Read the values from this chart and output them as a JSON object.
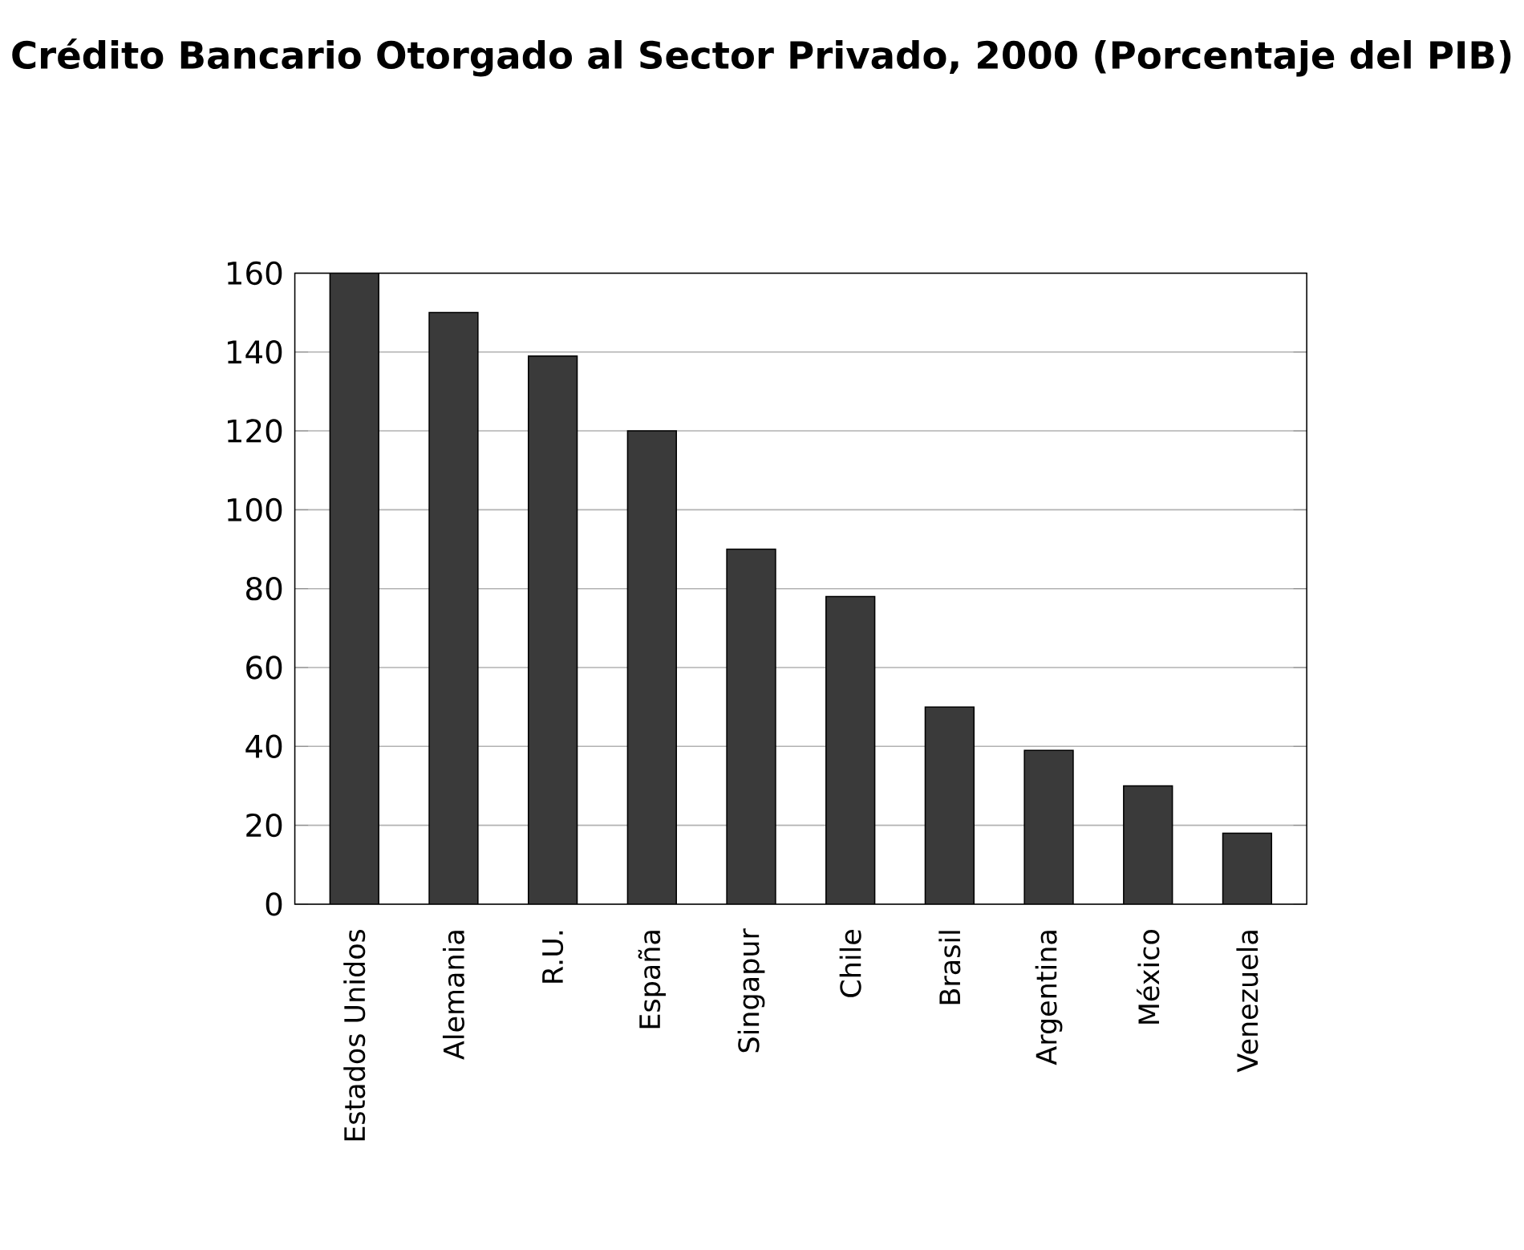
{
  "chart_data": {
    "type": "bar",
    "title": "Crédito Bancario Otorgado al Sector Privado, 2000 (Porcentaje del PIB)",
    "categories": [
      "Estados Unidos",
      "Alemania",
      "R.U.",
      "España",
      "Singapur",
      "Chile",
      "Brasil",
      "Argentina",
      "México",
      "Venezuela"
    ],
    "values": [
      160,
      150,
      139,
      120,
      90,
      78,
      50,
      39,
      30,
      18
    ],
    "color": "#3a3a3a",
    "ylim": [
      0,
      160
    ],
    "yticks": [
      0,
      20,
      40,
      60,
      80,
      100,
      120,
      140,
      160
    ],
    "grid": "y"
  }
}
